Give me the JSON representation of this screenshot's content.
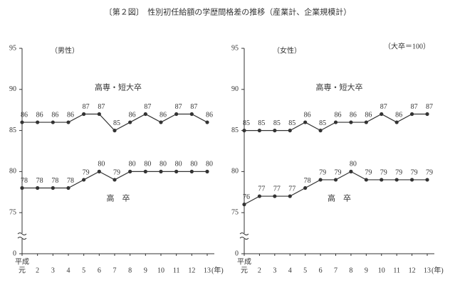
{
  "chart_data": [
    {
      "type": "line",
      "title": "〔第２図〕　性別初任給額の学歴間格差の推移（産業計、企業規模計）",
      "subtitle": "（男性）",
      "era_label": "平成",
      "x_unit": "(年)",
      "categories": [
        "元",
        "2",
        "3",
        "4",
        "5",
        "6",
        "7",
        "8",
        "9",
        "10",
        "11",
        "12",
        "13"
      ],
      "series": [
        {
          "name": "高専・短大卒",
          "color": "#333333",
          "values": [
            86,
            86,
            86,
            86,
            87,
            87,
            85,
            86,
            87,
            86,
            87,
            87,
            86
          ]
        },
        {
          "name": "高　卒",
          "color": "#333333",
          "values": [
            78,
            78,
            78,
            78,
            79,
            80,
            79,
            80,
            80,
            80,
            80,
            80,
            80
          ]
        }
      ],
      "ylim": [
        0,
        95
      ],
      "axis_break": [
        0,
        70
      ],
      "yticks": [
        0,
        75,
        80,
        85,
        90,
        95
      ]
    },
    {
      "type": "line",
      "subtitle": "（女性）",
      "note": "（大卒＝100）",
      "era_label": "平成",
      "x_unit": "(年)",
      "categories": [
        "元",
        "2",
        "3",
        "4",
        "5",
        "6",
        "7",
        "8",
        "9",
        "10",
        "11",
        "12",
        "13"
      ],
      "series": [
        {
          "name": "高専・短大卒",
          "color": "#333333",
          "values": [
            85,
            85,
            85,
            85,
            86,
            85,
            86,
            86,
            86,
            87,
            86,
            87,
            87
          ]
        },
        {
          "name": "高　卒",
          "color": "#333333",
          "values": [
            76,
            77,
            77,
            77,
            78,
            79,
            79,
            80,
            79,
            79,
            79,
            79,
            79
          ]
        }
      ],
      "ylim": [
        0,
        95
      ],
      "axis_break": [
        0,
        70
      ],
      "yticks": [
        0,
        75,
        80,
        85,
        90,
        95
      ]
    }
  ]
}
